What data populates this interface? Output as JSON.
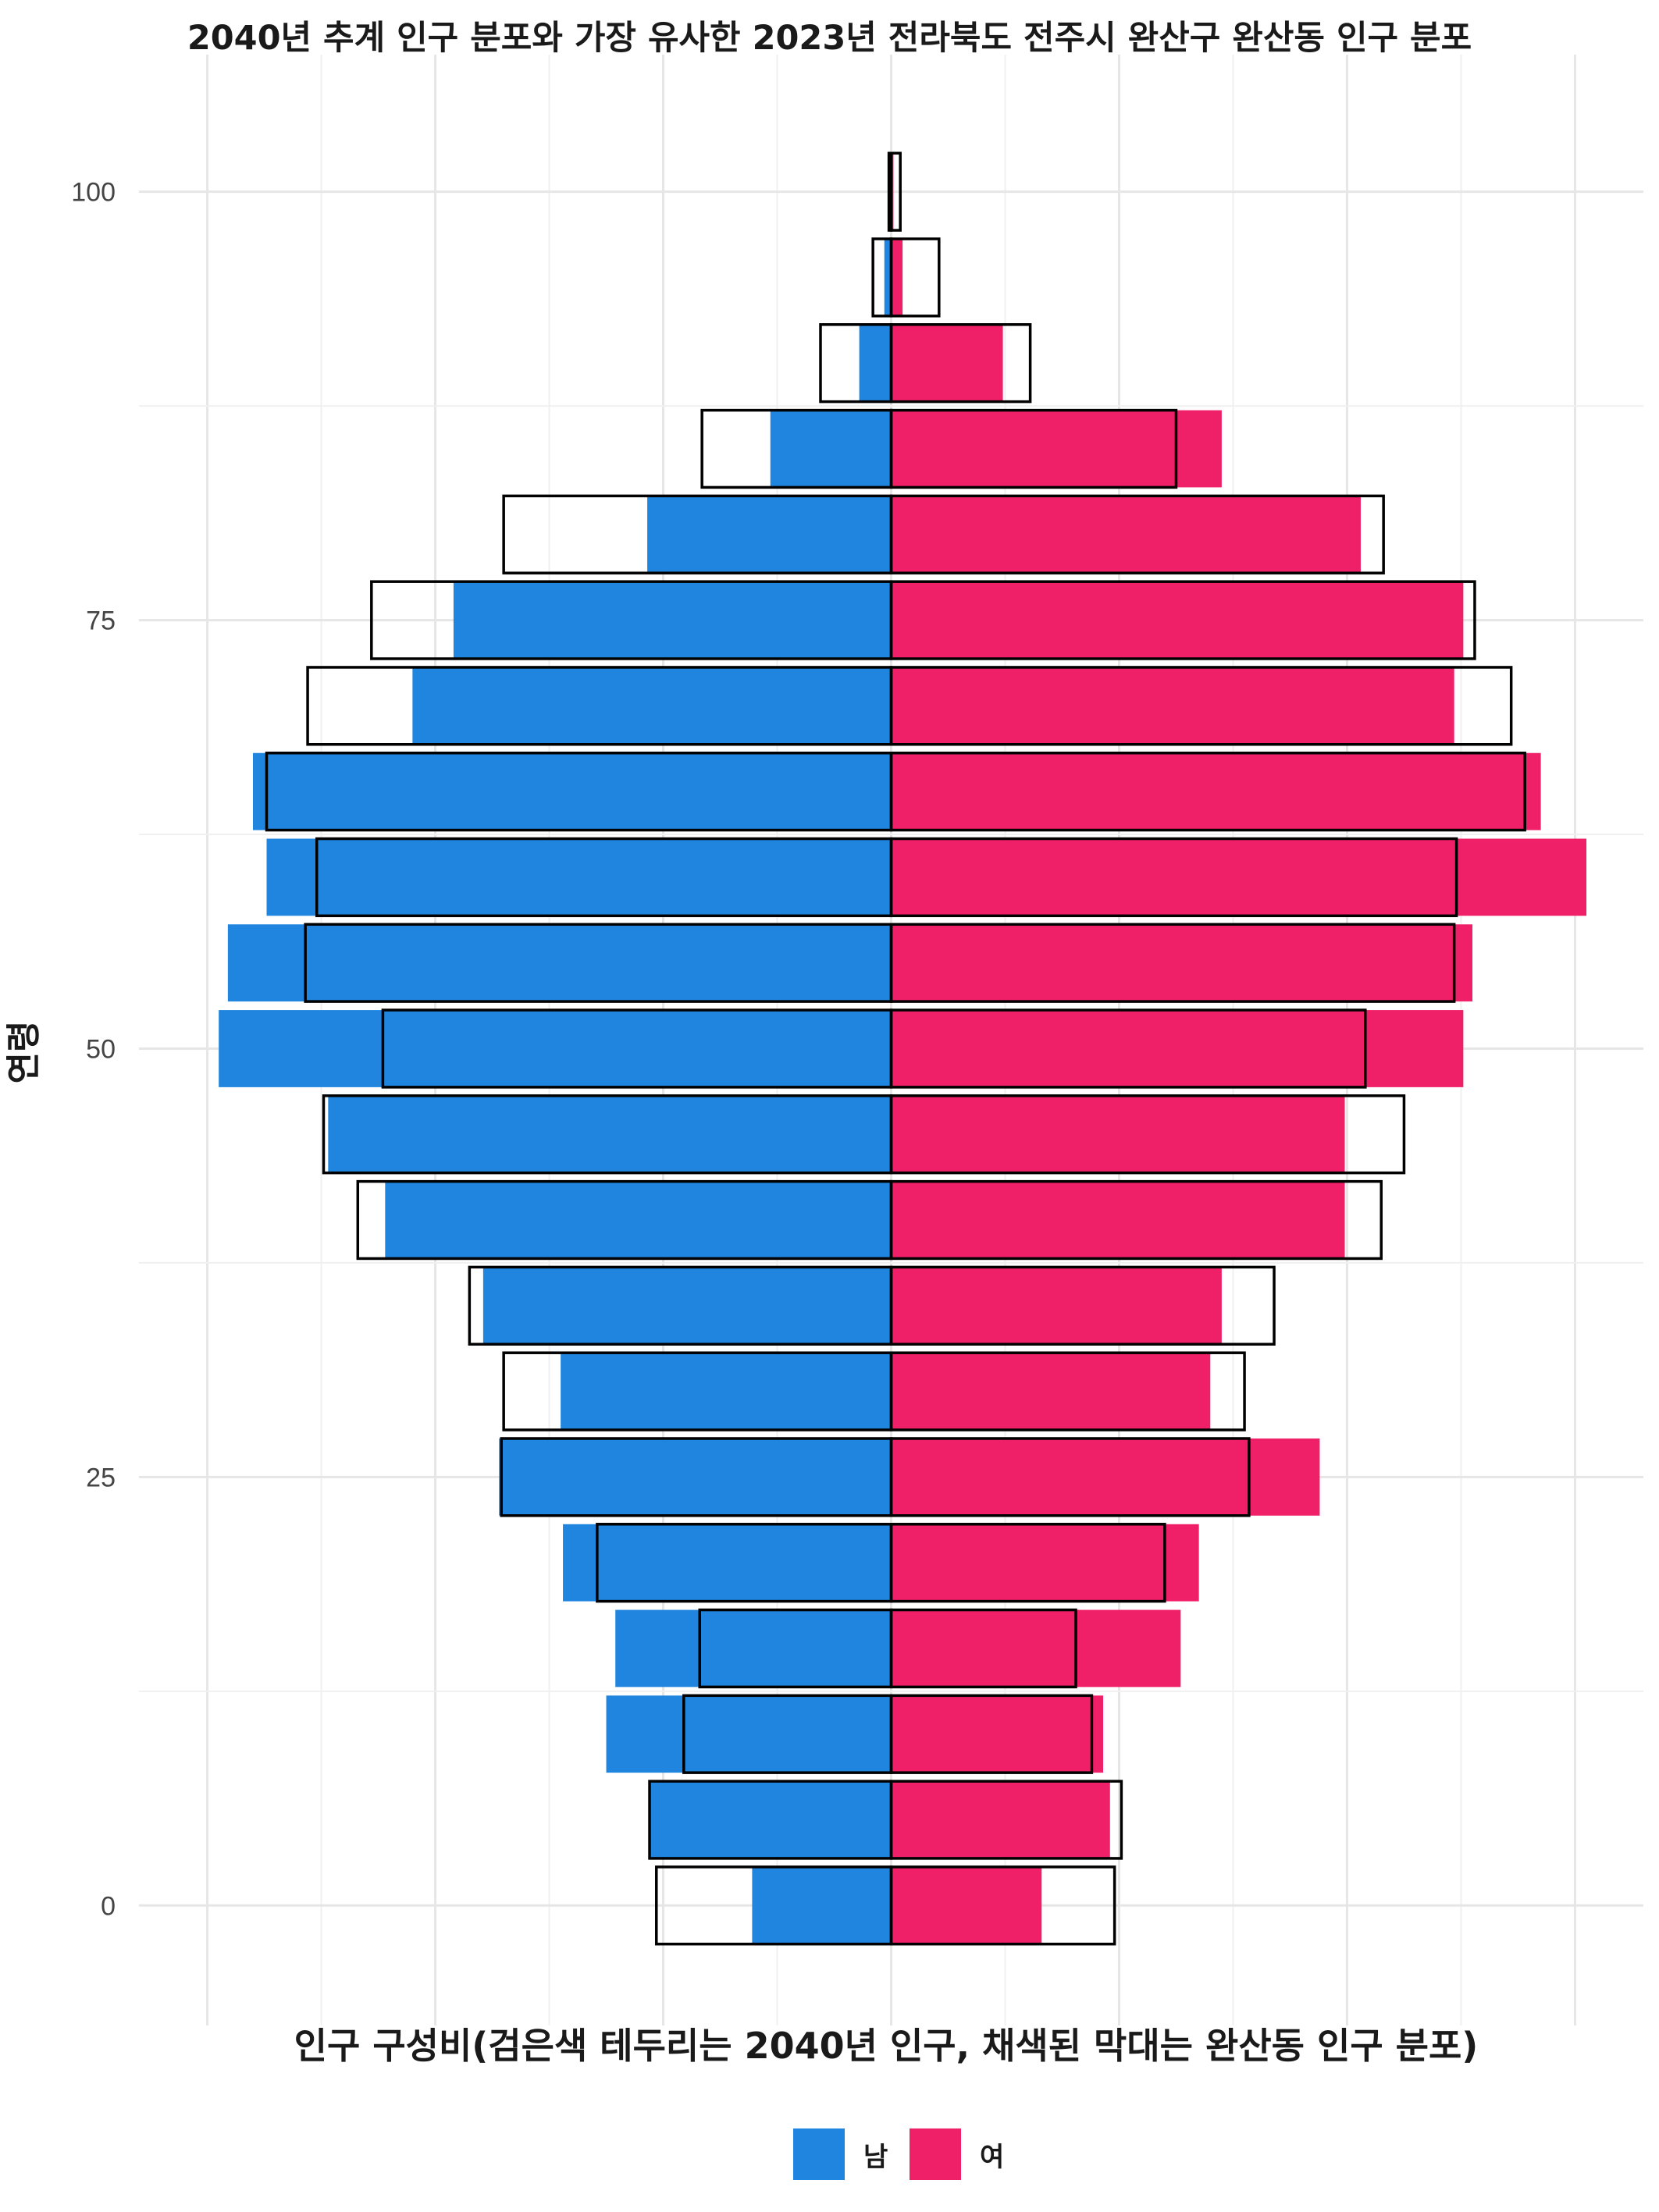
{
  "chart_data": {
    "type": "bar",
    "title": "2040년 추계 인구 분포와 가장 유사한 2023년 전라북도 전주시 완산구 완산동 인구 분포",
    "xlabel": "인구 구성비(검은색 테두리는 2040년 인구, 채색된 막대는 완산동 인구 분포)",
    "ylabel": "연령",
    "y_ticks": [
      0,
      25,
      50,
      75,
      100
    ],
    "ylim": [
      -7,
      108
    ],
    "xlim": [
      -3.3,
      3.3
    ],
    "grid": true,
    "legend_position": "bottom",
    "age_groups": [
      0,
      5,
      10,
      15,
      20,
      25,
      30,
      35,
      40,
      45,
      50,
      55,
      60,
      65,
      70,
      75,
      80,
      85,
      90,
      95,
      100
    ],
    "series": [
      {
        "name": "남",
        "color": "#1f85de",
        "values": [
          0.61,
          1.06,
          1.25,
          1.21,
          1.44,
          1.72,
          1.45,
          1.79,
          2.22,
          2.47,
          2.95,
          2.91,
          2.74,
          2.8,
          2.1,
          1.92,
          1.07,
          0.53,
          0.14,
          0.03,
          0.01
        ]
      },
      {
        "name": "여",
        "color": "#ef1f68",
        "values": [
          0.66,
          0.96,
          0.93,
          1.27,
          1.35,
          1.88,
          1.4,
          1.45,
          1.99,
          1.99,
          2.51,
          2.55,
          3.05,
          2.85,
          2.47,
          2.51,
          2.06,
          1.45,
          0.49,
          0.05,
          0.01
        ]
      }
    ],
    "outline_2040": {
      "color": "#000000",
      "male": [
        1.03,
        1.06,
        0.91,
        0.84,
        1.29,
        1.71,
        1.7,
        1.85,
        2.34,
        2.49,
        2.23,
        2.57,
        2.52,
        2.74,
        2.56,
        2.28,
        1.7,
        0.83,
        0.31,
        0.08,
        0.01
      ],
      "female": [
        0.98,
        1.01,
        0.88,
        0.81,
        1.2,
        1.57,
        1.55,
        1.68,
        2.15,
        2.25,
        2.08,
        2.47,
        2.48,
        2.78,
        2.72,
        2.56,
        2.16,
        1.25,
        0.61,
        0.21,
        0.04
      ]
    }
  }
}
